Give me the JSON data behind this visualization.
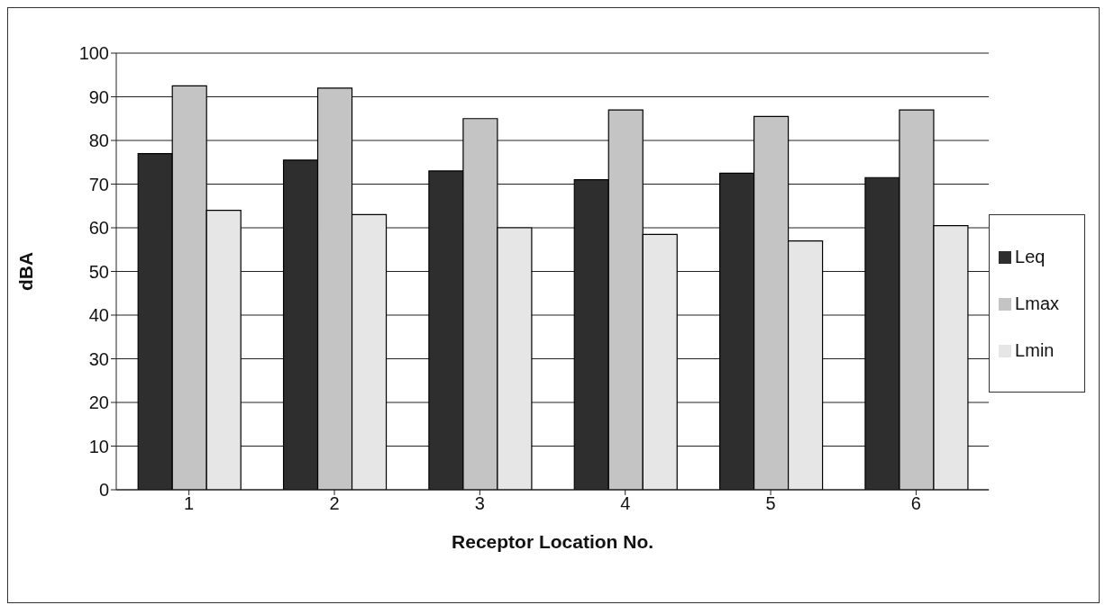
{
  "chart_data": {
    "type": "bar",
    "xlabel": "Receptor Location No.",
    "ylabel": "dBA",
    "categories": [
      "1",
      "2",
      "3",
      "4",
      "5",
      "6"
    ],
    "series": [
      {
        "name": "Leq",
        "color": "#2e2e2e",
        "values": [
          77,
          75.5,
          73,
          71,
          72.5,
          71.5
        ]
      },
      {
        "name": "Lmax",
        "color": "#c4c4c4",
        "values": [
          92.5,
          92,
          85,
          87,
          85.5,
          87
        ]
      },
      {
        "name": "Lmin",
        "color": "#e6e6e6",
        "values": [
          64,
          63,
          60,
          58.5,
          57,
          60.5
        ]
      }
    ],
    "ylim": [
      0,
      100
    ],
    "yticks": [
      0,
      10,
      20,
      30,
      40,
      50,
      60,
      70,
      80,
      90,
      100
    ],
    "grid": "y",
    "legend": "right"
  }
}
